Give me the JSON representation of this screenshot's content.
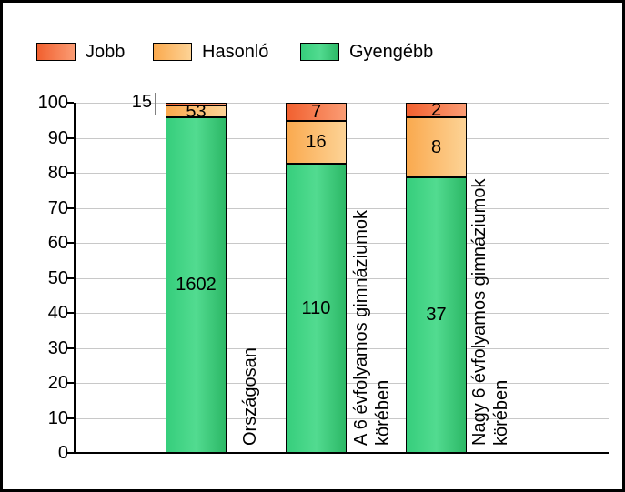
{
  "legend": {
    "items": [
      {
        "label": "Jobb",
        "series_key": "jobb"
      },
      {
        "label": "Hasonló",
        "series_key": "hasonlo"
      },
      {
        "label": "Gyengébb",
        "series_key": "gyengebb"
      }
    ]
  },
  "chart_data": {
    "type": "bar",
    "stacked": true,
    "orientation": "vertical",
    "title": "",
    "xlabel": "",
    "ylabel": "",
    "categories": [
      "Országosan",
      "A 6 évfolyamos gimnáziumok\nkörében",
      "Nagy 6 évfolyamos gimnáziumok\nkörében"
    ],
    "series": [
      {
        "name": "Gyengébb",
        "key": "gyengebb",
        "values": [
          1602,
          110,
          37
        ]
      },
      {
        "name": "Hasonló",
        "key": "hasonlo",
        "values": [
          53,
          16,
          8
        ]
      },
      {
        "name": "Jobb",
        "key": "jobb",
        "values": [
          15,
          7,
          2
        ]
      }
    ],
    "bar_scaling": "each bar stacked to 100% of its own total; labels show raw counts",
    "ylim": [
      0,
      100
    ],
    "ytick_step": 10,
    "grid": true,
    "legend_position": "top-left",
    "outside_callout": {
      "category_index": 0,
      "series_key": "jobb",
      "value": 15
    }
  },
  "colors": {
    "jobb_gradient": [
      "#F1602F",
      "#FB9C74"
    ],
    "hasonlo_gradient": [
      "#FAA94E",
      "#FDD396"
    ],
    "gyengebb_gradient": [
      "#36CE7C",
      "#52DB90",
      "#2CB866"
    ],
    "gridline": "#C8C8C8",
    "axis": "#000000",
    "callout_line": "#808080",
    "text": "#000000",
    "background": "#FFFFFF",
    "frame_border": "#000000"
  }
}
